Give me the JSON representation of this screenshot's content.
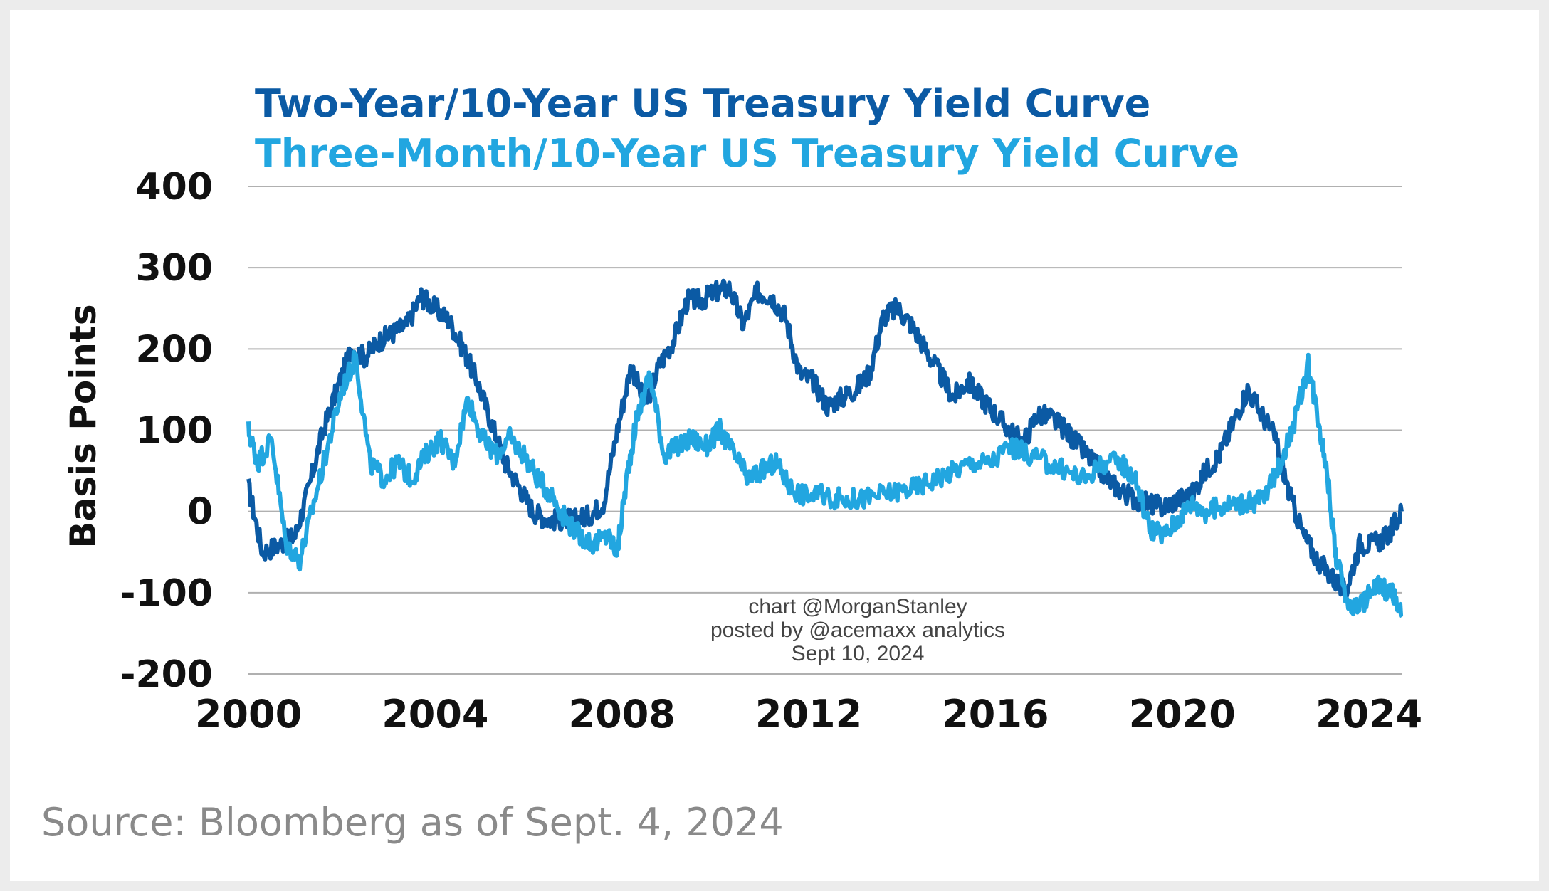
{
  "chart_data": {
    "type": "line",
    "title": "Two-Year/10-Year US Treasury Yield Curve",
    "subtitle": "Three-Month/10-Year US Treasury Yield Curve",
    "xlabel": "",
    "ylabel": "Basis Points",
    "xlim": [
      2000,
      2024.7
    ],
    "ylim": [
      -200,
      400
    ],
    "x_ticks": [
      "2000",
      "2004",
      "2008",
      "2012",
      "2016",
      "2020",
      "2024"
    ],
    "y_ticks": [
      "400",
      "300",
      "200",
      "100",
      "0",
      "-100",
      "-200"
    ],
    "grid": "horizontal",
    "legend": "none",
    "series": [
      {
        "name": "Two-Year/10-Year US Treasury Yield Curve",
        "color": "#0b5aa4",
        "points": [
          [
            2000.0,
            30
          ],
          [
            2000.3,
            -50
          ],
          [
            2000.7,
            -40
          ],
          [
            2001.0,
            -30
          ],
          [
            2001.3,
            30
          ],
          [
            2001.6,
            100
          ],
          [
            2001.9,
            150
          ],
          [
            2002.2,
            200
          ],
          [
            2002.5,
            190
          ],
          [
            2002.8,
            210
          ],
          [
            2003.1,
            220
          ],
          [
            2003.4,
            230
          ],
          [
            2003.7,
            265
          ],
          [
            2004.0,
            250
          ],
          [
            2004.3,
            235
          ],
          [
            2004.6,
            200
          ],
          [
            2004.9,
            160
          ],
          [
            2005.2,
            110
          ],
          [
            2005.5,
            60
          ],
          [
            2005.8,
            30
          ],
          [
            2006.1,
            0
          ],
          [
            2006.4,
            -10
          ],
          [
            2006.7,
            -10
          ],
          [
            2007.0,
            -10
          ],
          [
            2007.3,
            -5
          ],
          [
            2007.6,
            10
          ],
          [
            2007.9,
            100
          ],
          [
            2008.2,
            180
          ],
          [
            2008.5,
            130
          ],
          [
            2008.8,
            180
          ],
          [
            2009.1,
            210
          ],
          [
            2009.4,
            260
          ],
          [
            2009.7,
            260
          ],
          [
            2010.0,
            270
          ],
          [
            2010.3,
            275
          ],
          [
            2010.6,
            230
          ],
          [
            2010.9,
            270
          ],
          [
            2011.2,
            265
          ],
          [
            2011.5,
            240
          ],
          [
            2011.8,
            170
          ],
          [
            2012.1,
            160
          ],
          [
            2012.4,
            130
          ],
          [
            2012.7,
            140
          ],
          [
            2013.0,
            150
          ],
          [
            2013.3,
            170
          ],
          [
            2013.6,
            240
          ],
          [
            2013.9,
            250
          ],
          [
            2014.2,
            230
          ],
          [
            2014.5,
            200
          ],
          [
            2014.8,
            170
          ],
          [
            2015.1,
            140
          ],
          [
            2015.4,
            160
          ],
          [
            2015.7,
            140
          ],
          [
            2016.0,
            120
          ],
          [
            2016.3,
            100
          ],
          [
            2016.6,
            85
          ],
          [
            2016.9,
            120
          ],
          [
            2017.2,
            115
          ],
          [
            2017.5,
            100
          ],
          [
            2017.8,
            80
          ],
          [
            2018.1,
            60
          ],
          [
            2018.4,
            40
          ],
          [
            2018.7,
            25
          ],
          [
            2019.0,
            15
          ],
          [
            2019.3,
            10
          ],
          [
            2019.6,
            5
          ],
          [
            2019.9,
            15
          ],
          [
            2020.2,
            20
          ],
          [
            2020.5,
            50
          ],
          [
            2020.8,
            70
          ],
          [
            2021.1,
            110
          ],
          [
            2021.4,
            150
          ],
          [
            2021.7,
            120
          ],
          [
            2022.0,
            90
          ],
          [
            2022.3,
            20
          ],
          [
            2022.6,
            -30
          ],
          [
            2022.9,
            -60
          ],
          [
            2023.2,
            -80
          ],
          [
            2023.5,
            -100
          ],
          [
            2023.8,
            -40
          ],
          [
            2024.1,
            -40
          ],
          [
            2024.4,
            -30
          ],
          [
            2024.7,
            0
          ]
        ]
      },
      {
        "name": "Three-Month/10-Year US Treasury Yield Curve",
        "color": "#22a6e0",
        "points": [
          [
            2000.0,
            100
          ],
          [
            2000.2,
            60
          ],
          [
            2000.5,
            90
          ],
          [
            2000.8,
            -40
          ],
          [
            2001.1,
            -60
          ],
          [
            2001.4,
            10
          ],
          [
            2001.7,
            80
          ],
          [
            2002.0,
            150
          ],
          [
            2002.3,
            190
          ],
          [
            2002.6,
            60
          ],
          [
            2002.9,
            40
          ],
          [
            2003.2,
            60
          ],
          [
            2003.5,
            40
          ],
          [
            2003.8,
            70
          ],
          [
            2004.1,
            90
          ],
          [
            2004.4,
            60
          ],
          [
            2004.7,
            140
          ],
          [
            2005.0,
            90
          ],
          [
            2005.3,
            70
          ],
          [
            2005.6,
            90
          ],
          [
            2005.9,
            70
          ],
          [
            2006.2,
            40
          ],
          [
            2006.5,
            20
          ],
          [
            2006.8,
            -10
          ],
          [
            2007.1,
            -30
          ],
          [
            2007.4,
            -40
          ],
          [
            2007.7,
            -30
          ],
          [
            2007.9,
            -50
          ],
          [
            2008.1,
            40
          ],
          [
            2008.3,
            110
          ],
          [
            2008.6,
            170
          ],
          [
            2008.9,
            70
          ],
          [
            2009.2,
            80
          ],
          [
            2009.5,
            90
          ],
          [
            2009.8,
            80
          ],
          [
            2010.1,
            100
          ],
          [
            2010.4,
            70
          ],
          [
            2010.7,
            40
          ],
          [
            2011.0,
            50
          ],
          [
            2011.3,
            60
          ],
          [
            2011.6,
            30
          ],
          [
            2011.9,
            20
          ],
          [
            2012.3,
            20
          ],
          [
            2012.7,
            15
          ],
          [
            2013.1,
            15
          ],
          [
            2013.5,
            20
          ],
          [
            2013.9,
            25
          ],
          [
            2014.3,
            30
          ],
          [
            2014.7,
            40
          ],
          [
            2015.1,
            50
          ],
          [
            2015.5,
            60
          ],
          [
            2015.9,
            60
          ],
          [
            2016.3,
            80
          ],
          [
            2016.7,
            70
          ],
          [
            2017.1,
            60
          ],
          [
            2017.5,
            50
          ],
          [
            2017.9,
            40
          ],
          [
            2018.3,
            60
          ],
          [
            2018.7,
            60
          ],
          [
            2019.0,
            40
          ],
          [
            2019.3,
            -20
          ],
          [
            2019.6,
            -30
          ],
          [
            2019.9,
            -10
          ],
          [
            2020.2,
            10
          ],
          [
            2020.5,
            0
          ],
          [
            2020.8,
            5
          ],
          [
            2021.1,
            10
          ],
          [
            2021.5,
            10
          ],
          [
            2021.8,
            20
          ],
          [
            2022.1,
            60
          ],
          [
            2022.4,
            110
          ],
          [
            2022.7,
            180
          ],
          [
            2022.9,
            120
          ],
          [
            2023.1,
            50
          ],
          [
            2023.3,
            -60
          ],
          [
            2023.6,
            -120
          ],
          [
            2023.9,
            -110
          ],
          [
            2024.2,
            -90
          ],
          [
            2024.5,
            -100
          ],
          [
            2024.7,
            -130
          ]
        ]
      }
    ]
  },
  "watermark": {
    "line1": "chart @MorganStanley",
    "line2": "posted by @acemaxx analytics",
    "line3": "Sept 10, 2024"
  },
  "source": "Source: Bloomberg as of Sept. 4, 2024"
}
